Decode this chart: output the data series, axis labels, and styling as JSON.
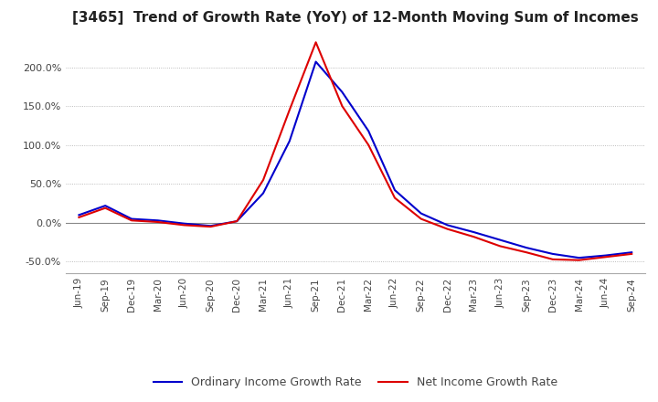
{
  "title": "[3465]  Trend of Growth Rate (YoY) of 12-Month Moving Sum of Incomes",
  "title_fontsize": 11,
  "ylim": [
    -65,
    245
  ],
  "yticks": [
    -50,
    0,
    50,
    100,
    150,
    200
  ],
  "background_color": "#ffffff",
  "plot_bg_color": "#ffffff",
  "line_ordinary_color": "#0000cc",
  "line_net_color": "#dd0000",
  "legend_ordinary": "Ordinary Income Growth Rate",
  "legend_net": "Net Income Growth Rate",
  "dates": [
    "Jun-19",
    "Sep-19",
    "Dec-19",
    "Mar-20",
    "Jun-20",
    "Sep-20",
    "Dec-20",
    "Mar-21",
    "Jun-21",
    "Sep-21",
    "Dec-21",
    "Mar-22",
    "Jun-22",
    "Sep-22",
    "Dec-22",
    "Mar-23",
    "Jun-23",
    "Sep-23",
    "Dec-23",
    "Mar-24",
    "Jun-24",
    "Sep-24"
  ],
  "ordinary_income": [
    10,
    22,
    5,
    3,
    -1,
    -4,
    2,
    38,
    105,
    207,
    168,
    118,
    42,
    12,
    -3,
    -12,
    -22,
    -32,
    -40,
    -45,
    -42,
    -38
  ],
  "net_income": [
    7,
    19,
    3,
    1,
    -3,
    -5,
    2,
    55,
    145,
    232,
    150,
    100,
    32,
    5,
    -8,
    -18,
    -30,
    -38,
    -47,
    -48,
    -44,
    -40
  ]
}
